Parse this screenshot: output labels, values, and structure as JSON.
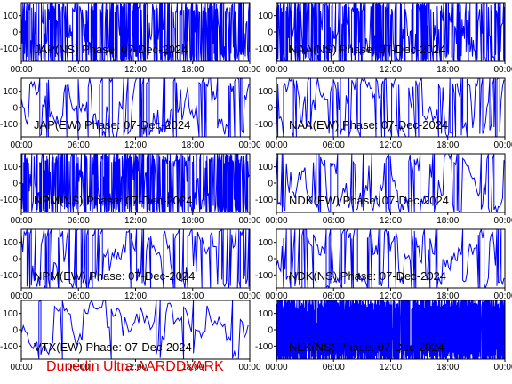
{
  "footer": "Dunedin Ultra AARDDVARK",
  "colors": {
    "trace": "#0000ff",
    "axis": "#000000",
    "label": "#000000",
    "footer": "#e00000"
  },
  "chart_data": [
    {
      "type": "line",
      "title": "JAP(NS) Phase: 07-Dec-2024",
      "density": "dense",
      "x_ticks": [
        "00:00",
        "06:00",
        "12:00",
        "18:00",
        "00:00"
      ],
      "y_ticks": [
        "100",
        "0",
        "-100"
      ],
      "ylim": [
        -180,
        180
      ]
    },
    {
      "type": "line",
      "title": "NAA(NS) Phase: 07-Dec-2024",
      "density": "dense",
      "x_ticks": [
        "00:00",
        "06:00",
        "12:00",
        "18:00",
        "00:00"
      ],
      "y_ticks": [
        "100",
        "0",
        "-100"
      ],
      "ylim": [
        -180,
        180
      ]
    },
    {
      "type": "line",
      "title": "JAP(EW) Phase: 07-Dec-2024",
      "density": "medium",
      "x_ticks": [
        "00:00",
        "06:00",
        "12:00",
        "18:00",
        "00:00"
      ],
      "y_ticks": [
        "100",
        "0",
        "-100"
      ],
      "ylim": [
        -180,
        180
      ]
    },
    {
      "type": "line",
      "title": "NAA(EW) Phase: 07-Dec-2024",
      "density": "medium",
      "x_ticks": [
        "00:00",
        "06:00",
        "12:00",
        "18:00",
        "00:00"
      ],
      "y_ticks": [
        "100",
        "0",
        "-100"
      ],
      "ylim": [
        -180,
        180
      ]
    },
    {
      "type": "line",
      "title": "NPM(NS) Phase: 07-Dec-2024",
      "density": "dense",
      "x_ticks": [
        "00:00",
        "06:00",
        "12:00",
        "18:00",
        "00:00"
      ],
      "y_ticks": [
        "100",
        "0",
        "-100"
      ],
      "ylim": [
        -180,
        180
      ]
    },
    {
      "type": "line",
      "title": "NDK(EW) Phase: 07-Dec-2024",
      "density": "medium",
      "x_ticks": [
        "00:00",
        "06:00",
        "12:00",
        "18:00",
        "00:00"
      ],
      "y_ticks": [
        "100",
        "0",
        "-100"
      ],
      "ylim": [
        -180,
        180
      ]
    },
    {
      "type": "line",
      "title": "NPM(EW) Phase: 07-Dec-2024",
      "density": "medium",
      "x_ticks": [
        "00:00",
        "06:00",
        "12:00",
        "18:00",
        "00:00"
      ],
      "y_ticks": [
        "100",
        "0",
        "-100"
      ],
      "ylim": [
        -180,
        180
      ]
    },
    {
      "type": "line",
      "title": "NDK(NS) Phase: 07-Dec-2024",
      "density": "medium",
      "x_ticks": [
        "00:00",
        "06:00",
        "12:00",
        "18:00",
        "00:00"
      ],
      "y_ticks": [
        "100",
        "0",
        "-100"
      ],
      "ylim": [
        -180,
        180
      ]
    },
    {
      "type": "line",
      "title": "VTX(EW) Phase: 07-Dec-2024",
      "density": "sparse",
      "x_ticks": [
        "00:00",
        "06:00",
        "12:00",
        "18:00",
        "00:00"
      ],
      "y_ticks": [
        "100",
        "0",
        "-100"
      ],
      "ylim": [
        -180,
        180
      ]
    },
    {
      "type": "line",
      "title": "NLK(NS) Phase: 07-Dec-2024",
      "density": "solid",
      "x_ticks": [
        "00:00",
        "06:00",
        "12:00",
        "18:00",
        "00:00"
      ],
      "y_ticks": [
        "100",
        "0",
        "-100"
      ],
      "ylim": [
        -180,
        180
      ]
    }
  ]
}
